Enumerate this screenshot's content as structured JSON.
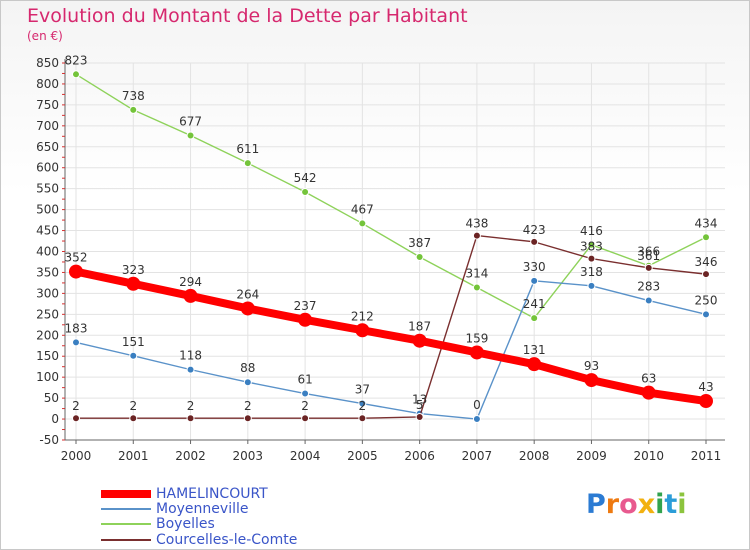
{
  "title": "Evolution du Montant de la Dette par Habitant",
  "unit": "(en €)",
  "logo": "Proxiti",
  "chart_data": {
    "type": "line",
    "title": "Evolution du Montant de la Dette par Habitant",
    "subtitle": "(en €)",
    "xlabel": "",
    "ylabel": "",
    "x": [
      "2000",
      "2001",
      "2002",
      "2003",
      "2004",
      "2005",
      "2006",
      "2007",
      "2008",
      "2009",
      "2010",
      "2011"
    ],
    "ylim": [
      -50,
      850
    ],
    "yticks": [
      "-50",
      "0",
      "50",
      "100",
      "150",
      "200",
      "250",
      "300",
      "350",
      "400",
      "450",
      "500",
      "550",
      "600",
      "650",
      "700",
      "750",
      "800",
      "850"
    ],
    "grid": true,
    "legend": "bottom-left",
    "series": [
      {
        "name": "HAMELINCOURT",
        "color": "#ff0000",
        "values": [
          352,
          323,
          294,
          264,
          237,
          212,
          187,
          159,
          131,
          93,
          63,
          43
        ]
      },
      {
        "name": "Moyenneville",
        "color": "#5a92c9",
        "values": [
          183,
          151,
          118,
          88,
          61,
          37,
          13,
          0,
          330,
          318,
          283,
          250
        ]
      },
      {
        "name": "Boyelles",
        "color": "#8ed25a",
        "values": [
          823,
          738,
          677,
          611,
          542,
          467,
          387,
          314,
          241,
          416,
          366,
          434
        ]
      },
      {
        "name": "Courcelles-le-Comte",
        "color": "#7a2f2f",
        "values": [
          2,
          2,
          2,
          2,
          2,
          2,
          5,
          438,
          423,
          383,
          361,
          346
        ]
      }
    ],
    "point_labels": [
      [
        "352",
        "323",
        "294",
        "264",
        "237",
        "212",
        "187",
        "159",
        "131",
        "93",
        "63",
        "43"
      ],
      [
        "183",
        "151",
        "118",
        "88",
        "61",
        "37",
        "13",
        "0",
        "330",
        "318",
        "283",
        "250"
      ],
      [
        "823",
        "738",
        "677",
        "611",
        "542",
        "467",
        "387",
        "314",
        "241",
        "416",
        "366",
        "434"
      ],
      [
        "2",
        "2",
        "2",
        "2",
        "2",
        "2",
        "5",
        "438",
        "423",
        "383",
        "361",
        "346"
      ]
    ]
  }
}
